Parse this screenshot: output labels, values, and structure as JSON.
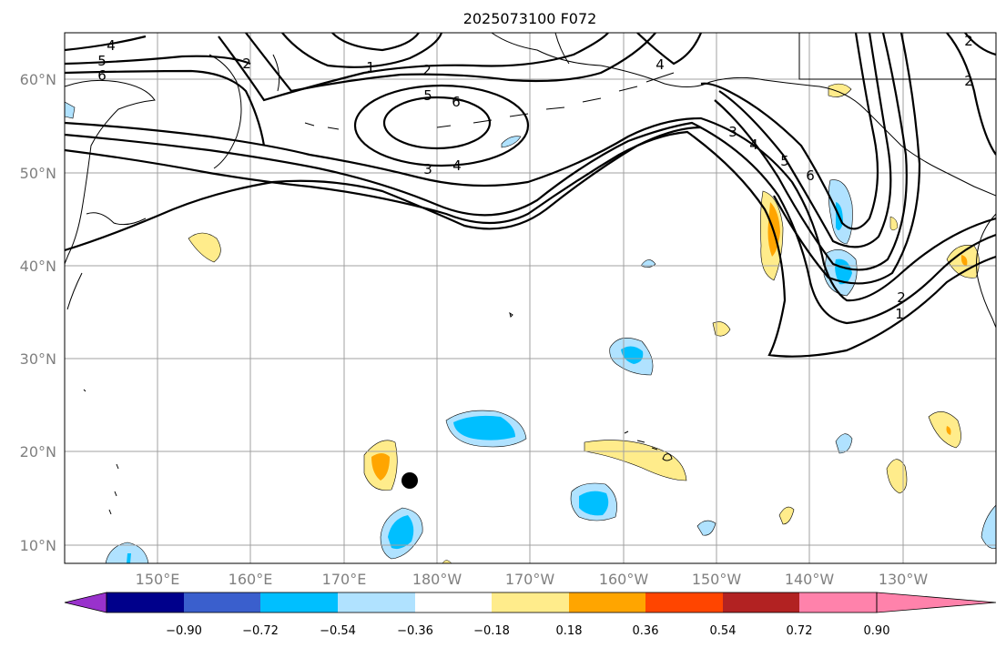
{
  "title": "2025073100 F072",
  "lat_labels": [
    "60°N",
    "50°N",
    "40°N",
    "30°N",
    "20°N",
    "10°N"
  ],
  "lon_labels": [
    "150°E",
    "160°E",
    "170°E",
    "180°W",
    "170°W",
    "160°W",
    "150°W",
    "140°W",
    "130°W"
  ],
  "contour_labels": [
    "4",
    "5",
    "6",
    "2",
    "1",
    "2",
    "5",
    "6",
    "3",
    "4",
    "4",
    "3",
    "4",
    "5",
    "6",
    "2",
    "2",
    "2",
    "1"
  ],
  "colorbar": {
    "colors": [
      "#9932cc",
      "#00008b",
      "#3a5fcd",
      "#00bfff",
      "#b0e2ff",
      "#ffffff",
      "#ffec8b",
      "#ffa500",
      "#ff4500",
      "#b22222",
      "#ff82ab"
    ],
    "tick_labels": [
      "−0.90",
      "−0.72",
      "−0.54",
      "−0.36",
      "−0.18",
      "0.18",
      "0.36",
      "0.54",
      "0.72",
      "0.90"
    ]
  },
  "colors": {
    "light_blue": "#b0e2ff",
    "deep_sky_blue": "#00bfff",
    "light_yellow": "#ffec8b",
    "orange": "#ffa500",
    "grid": "#a0a0a0",
    "label_gray": "#808080"
  },
  "marker": {
    "type": "black-dot"
  }
}
